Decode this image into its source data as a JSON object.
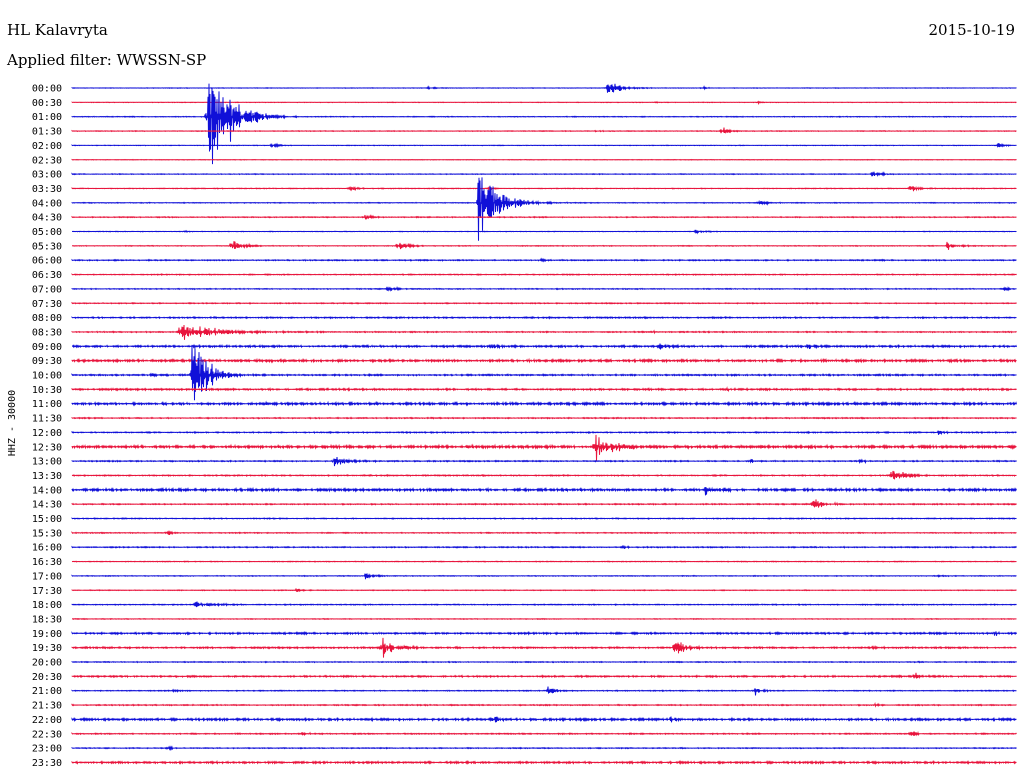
{
  "header": {
    "station": "HL Kalavryta",
    "date": "2015-10-19",
    "filter": "Applied filter: WWSSN-SP",
    "channel": "HHZ - 30000"
  },
  "colors": {
    "even_trace": "#1010d8",
    "odd_trace": "#e8143c",
    "background": "#ffffff",
    "text": "#000000"
  },
  "chart_data": {
    "type": "line",
    "title": "HL Kalavryta",
    "subtitle": "Applied filter: WWSSN-SP",
    "ylabel": "HHZ - 30000",
    "xlabel": "",
    "y_tick_labels": [
      "00:00",
      "00:30",
      "01:00",
      "01:30",
      "02:00",
      "02:30",
      "03:00",
      "03:30",
      "04:00",
      "04:30",
      "05:00",
      "05:30",
      "06:00",
      "06:30",
      "07:00",
      "07:30",
      "08:00",
      "08:30",
      "09:00",
      "09:30",
      "10:00",
      "10:30",
      "11:00",
      "11:30",
      "12:00",
      "12:30",
      "13:00",
      "13:30",
      "14:00",
      "14:30",
      "15:00",
      "15:30",
      "16:00",
      "16:30",
      "17:00",
      "17:30",
      "18:00",
      "18:30",
      "19:00",
      "19:30",
      "20:00",
      "20:30",
      "21:00",
      "21:30",
      "22:00",
      "22:30",
      "23:00",
      "23:30"
    ],
    "trace_minutes": 30,
    "noise_level": [
      0.3,
      0.3,
      0.4,
      0.4,
      0.3,
      0.3,
      0.4,
      0.4,
      0.4,
      0.5,
      0.3,
      0.4,
      0.6,
      0.5,
      0.5,
      0.5,
      0.7,
      0.6,
      1.0,
      1.2,
      0.8,
      0.9,
      1.2,
      0.6,
      0.6,
      1.4,
      0.6,
      0.6,
      1.2,
      0.6,
      0.5,
      0.5,
      0.6,
      0.4,
      0.4,
      0.4,
      0.5,
      0.4,
      0.9,
      0.8,
      0.5,
      0.8,
      0.5,
      0.6,
      1.1,
      0.6,
      0.5,
      1.0
    ],
    "events": [
      {
        "trace": 0,
        "minute": 17.0,
        "amp": 9,
        "dur": 0.9
      },
      {
        "trace": 0,
        "minute": 11.3,
        "amp": 3,
        "dur": 0.4
      },
      {
        "trace": 0,
        "minute": 20.0,
        "amp": 3,
        "dur": 0.4
      },
      {
        "trace": 1,
        "minute": 18.5,
        "amp": 2,
        "dur": 0.3
      },
      {
        "trace": 1,
        "minute": 21.8,
        "amp": 2,
        "dur": 0.3
      },
      {
        "trace": 2,
        "minute": 4.3,
        "amp": 95,
        "dur": 1.3
      },
      {
        "trace": 3,
        "minute": 20.6,
        "amp": 6,
        "dur": 0.6
      },
      {
        "trace": 3,
        "minute": 16.5,
        "amp": 2,
        "dur": 0.4
      },
      {
        "trace": 4,
        "minute": 6.3,
        "amp": 3,
        "dur": 0.4
      },
      {
        "trace": 4,
        "minute": 29.4,
        "amp": 4,
        "dur": 0.4
      },
      {
        "trace": 6,
        "minute": 25.4,
        "amp": 6,
        "dur": 0.6
      },
      {
        "trace": 7,
        "minute": 8.8,
        "amp": 3,
        "dur": 0.6
      },
      {
        "trace": 7,
        "minute": 26.6,
        "amp": 6,
        "dur": 0.5
      },
      {
        "trace": 7,
        "minute": 13.2,
        "amp": 3,
        "dur": 0.4
      },
      {
        "trace": 8,
        "minute": 12.9,
        "amp": 45,
        "dur": 1.3
      },
      {
        "trace": 8,
        "minute": 21.8,
        "amp": 5,
        "dur": 0.5
      },
      {
        "trace": 9,
        "minute": 9.3,
        "amp": 3,
        "dur": 0.7
      },
      {
        "trace": 10,
        "minute": 19.8,
        "amp": 5,
        "dur": 0.5
      },
      {
        "trace": 10,
        "minute": 3.5,
        "amp": 2,
        "dur": 0.3
      },
      {
        "trace": 11,
        "minute": 5.0,
        "amp": 8,
        "dur": 0.8
      },
      {
        "trace": 11,
        "minute": 10.3,
        "amp": 6,
        "dur": 0.6
      },
      {
        "trace": 11,
        "minute": 27.8,
        "amp": 6,
        "dur": 0.6
      },
      {
        "trace": 12,
        "minute": 14.9,
        "amp": 2,
        "dur": 0.5
      },
      {
        "trace": 14,
        "minute": 10.0,
        "amp": 4,
        "dur": 0.6
      },
      {
        "trace": 14,
        "minute": 29.6,
        "amp": 4,
        "dur": 0.3
      },
      {
        "trace": 17,
        "minute": 3.4,
        "amp": 10,
        "dur": 2.5
      },
      {
        "trace": 17,
        "minute": 18.4,
        "amp": 2,
        "dur": 0.3
      },
      {
        "trace": 18,
        "minute": 23.3,
        "amp": 5,
        "dur": 0.6
      },
      {
        "trace": 18,
        "minute": 13.3,
        "amp": 4,
        "dur": 0.5
      },
      {
        "trace": 18,
        "minute": 18.6,
        "amp": 4,
        "dur": 0.5
      },
      {
        "trace": 20,
        "minute": 3.8,
        "amp": 60,
        "dur": 0.9
      },
      {
        "trace": 20,
        "minute": 2.5,
        "amp": 3,
        "dur": 0.3
      },
      {
        "trace": 21,
        "minute": 20.8,
        "amp": 3,
        "dur": 0.4
      },
      {
        "trace": 24,
        "minute": 27.5,
        "amp": 4,
        "dur": 0.4
      },
      {
        "trace": 25,
        "minute": 16.6,
        "amp": 18,
        "dur": 1.5
      },
      {
        "trace": 26,
        "minute": 8.3,
        "amp": 8,
        "dur": 0.9
      },
      {
        "trace": 26,
        "minute": 21.5,
        "amp": 3,
        "dur": 0.4
      },
      {
        "trace": 26,
        "minute": 25.0,
        "amp": 3,
        "dur": 0.4
      },
      {
        "trace": 27,
        "minute": 26.0,
        "amp": 8,
        "dur": 0.9
      },
      {
        "trace": 27,
        "minute": 26.4,
        "amp": 6,
        "dur": 0.6
      },
      {
        "trace": 28,
        "minute": 20.1,
        "amp": 10,
        "dur": 0.8
      },
      {
        "trace": 28,
        "minute": 5.2,
        "amp": 2,
        "dur": 0.4
      },
      {
        "trace": 29,
        "minute": 23.5,
        "amp": 8,
        "dur": 1.0
      },
      {
        "trace": 31,
        "minute": 3.0,
        "amp": 3,
        "dur": 0.5
      },
      {
        "trace": 32,
        "minute": 17.5,
        "amp": 3,
        "dur": 0.3
      },
      {
        "trace": 34,
        "minute": 9.3,
        "amp": 4,
        "dur": 0.6
      },
      {
        "trace": 34,
        "minute": 27.4,
        "amp": 3,
        "dur": 0.4
      },
      {
        "trace": 35,
        "minute": 7.1,
        "amp": 3,
        "dur": 0.5
      },
      {
        "trace": 36,
        "minute": 3.9,
        "amp": 4,
        "dur": 1.2
      },
      {
        "trace": 38,
        "minute": 29.3,
        "amp": 4,
        "dur": 0.3
      },
      {
        "trace": 39,
        "minute": 9.8,
        "amp": 14,
        "dur": 0.9
      },
      {
        "trace": 39,
        "minute": 19.1,
        "amp": 14,
        "dur": 0.8
      },
      {
        "trace": 39,
        "minute": 25.3,
        "amp": 3,
        "dur": 0.4
      },
      {
        "trace": 41,
        "minute": 26.7,
        "amp": 7,
        "dur": 0.4
      },
      {
        "trace": 42,
        "minute": 15.1,
        "amp": 6,
        "dur": 0.5
      },
      {
        "trace": 42,
        "minute": 21.7,
        "amp": 5,
        "dur": 0.4
      },
      {
        "trace": 42,
        "minute": 3.2,
        "amp": 2,
        "dur": 0.3
      },
      {
        "trace": 43,
        "minute": 25.5,
        "amp": 3,
        "dur": 0.4
      },
      {
        "trace": 44,
        "minute": 13.3,
        "amp": 8,
        "dur": 0.5
      },
      {
        "trace": 44,
        "minute": 19.0,
        "amp": 5,
        "dur": 0.5
      },
      {
        "trace": 45,
        "minute": 7.3,
        "amp": 3,
        "dur": 0.4
      },
      {
        "trace": 45,
        "minute": 26.6,
        "amp": 6,
        "dur": 0.5
      },
      {
        "trace": 46,
        "minute": 3.0,
        "amp": 3,
        "dur": 0.4
      }
    ]
  }
}
